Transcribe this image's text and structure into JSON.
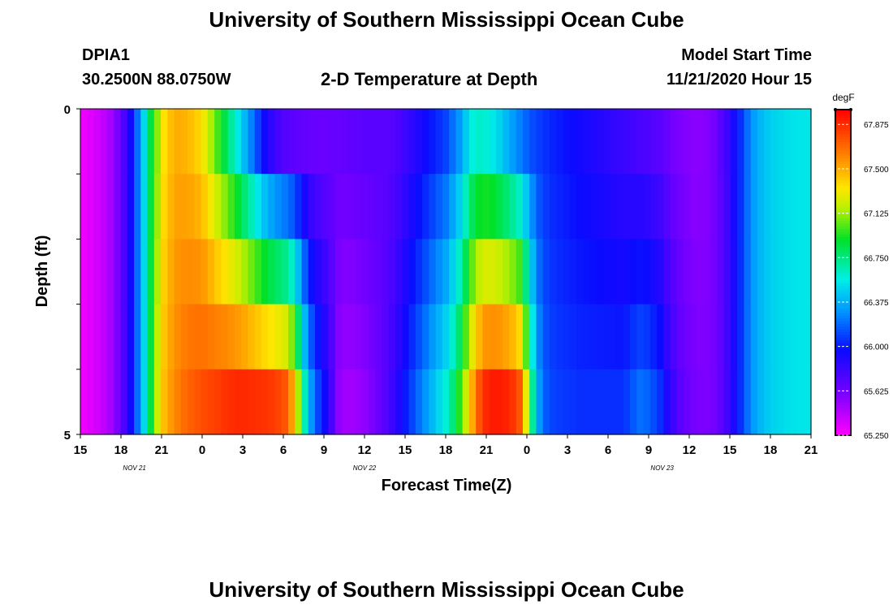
{
  "header": {
    "title": "University of Southern Mississippi Ocean Cube",
    "station_id": "DPIA1",
    "coordinates": "30.2500N 88.0750W",
    "model_label": "Model Start Time",
    "model_time": "11/21/2020 Hour 15"
  },
  "footer": {
    "title": "University of Southern Mississippi Ocean Cube"
  },
  "chart_data": {
    "type": "heatmap",
    "title": "2-D Temperature at Depth",
    "xlabel": "Forecast Time(Z)",
    "ylabel": "Depth (ft)",
    "x_ticks": [
      "15",
      "18",
      "21",
      "0",
      "3",
      "6",
      "9",
      "12",
      "15",
      "18",
      "21",
      "0",
      "3",
      "6",
      "9",
      "12",
      "15",
      "18",
      "21"
    ],
    "date_labels": [
      {
        "label": "NOV  21",
        "hour_index": 4
      },
      {
        "label": "NOV  22",
        "hour_index": 21
      },
      {
        "label": "NOV  23",
        "hour_index": 43
      }
    ],
    "y_tick_labels": [
      "0",
      "5"
    ],
    "ylim": [
      0,
      5
    ],
    "x_range_hours": [
      0,
      54
    ],
    "depth_rows": 5,
    "colorbar": {
      "units": "degF",
      "min": 65.25,
      "max": 68.0,
      "tick_values": [
        65.25,
        65.625,
        66.0,
        66.375,
        66.75,
        67.125,
        67.5,
        67.875
      ],
      "tick_labels": [
        "65.250",
        "65.625",
        "66.000",
        "66.375",
        "66.750",
        "67.125",
        "67.500",
        "67.875"
      ]
    },
    "surface_profile": [
      65.3,
      65.33,
      65.37,
      65.42,
      65.48,
      65.6,
      65.75,
      65.95,
      66.2,
      66.5,
      66.85,
      67.1,
      67.35,
      67.45,
      67.5,
      67.48,
      67.45,
      67.4,
      67.3,
      67.15,
      67.0,
      66.85,
      66.7,
      66.55,
      66.4,
      66.25,
      66.1,
      65.95,
      65.85,
      65.77,
      65.72,
      65.7,
      65.68,
      65.67,
      65.66,
      65.65,
      65.65,
      65.66,
      65.66,
      65.67,
      65.68,
      65.69,
      65.7,
      65.7,
      65.7,
      65.7,
      65.72,
      65.75,
      65.8,
      65.85,
      65.9,
      65.95,
      66.0,
      66.05,
      66.1,
      66.2,
      66.3,
      66.45,
      66.58,
      66.62,
      66.6,
      66.55,
      66.48,
      66.4,
      66.32,
      66.25,
      66.18,
      66.12,
      66.08,
      66.05,
      66.02,
      66.0,
      65.98,
      65.96,
      65.94,
      65.92,
      65.9,
      65.88,
      65.86,
      65.84,
      65.82,
      65.8,
      65.78,
      65.76,
      65.74,
      65.72,
      65.7,
      65.66,
      65.62,
      65.6,
      65.58,
      65.56,
      65.56,
      65.58,
      65.62,
      65.7,
      65.8,
      65.92,
      66.05,
      66.2,
      66.32,
      66.4,
      66.45,
      66.48,
      66.5,
      66.52,
      66.53,
      66.54,
      66.54
    ],
    "bottom_profile": [
      65.3,
      65.33,
      65.37,
      65.42,
      65.48,
      65.6,
      65.75,
      65.95,
      66.2,
      66.5,
      66.85,
      67.2,
      67.45,
      67.55,
      67.62,
      67.68,
      67.72,
      67.75,
      67.78,
      67.8,
      67.82,
      67.85,
      67.87,
      67.88,
      67.88,
      67.87,
      67.86,
      67.85,
      67.83,
      67.8,
      67.75,
      67.55,
      67.15,
      66.65,
      66.3,
      66.1,
      65.95,
      65.75,
      65.55,
      65.5,
      65.5,
      65.52,
      65.55,
      65.6,
      65.65,
      65.72,
      65.8,
      65.9,
      66.0,
      66.1,
      66.2,
      66.3,
      66.4,
      66.5,
      66.6,
      66.75,
      66.95,
      67.2,
      67.5,
      67.75,
      67.88,
      67.92,
      67.92,
      67.9,
      67.85,
      67.75,
      67.3,
      66.7,
      66.3,
      66.15,
      66.1,
      66.08,
      66.07,
      66.06,
      66.05,
      66.05,
      66.05,
      66.05,
      66.05,
      66.05,
      66.05,
      66.08,
      66.15,
      66.2,
      66.18,
      66.12,
      66.05,
      65.9,
      65.8,
      65.7,
      65.65,
      65.62,
      65.6,
      65.6,
      65.62,
      65.68,
      65.78,
      65.9,
      66.05,
      66.2,
      66.32,
      66.4,
      66.45,
      66.48,
      66.5,
      66.52,
      66.53,
      66.54,
      66.54
    ]
  }
}
